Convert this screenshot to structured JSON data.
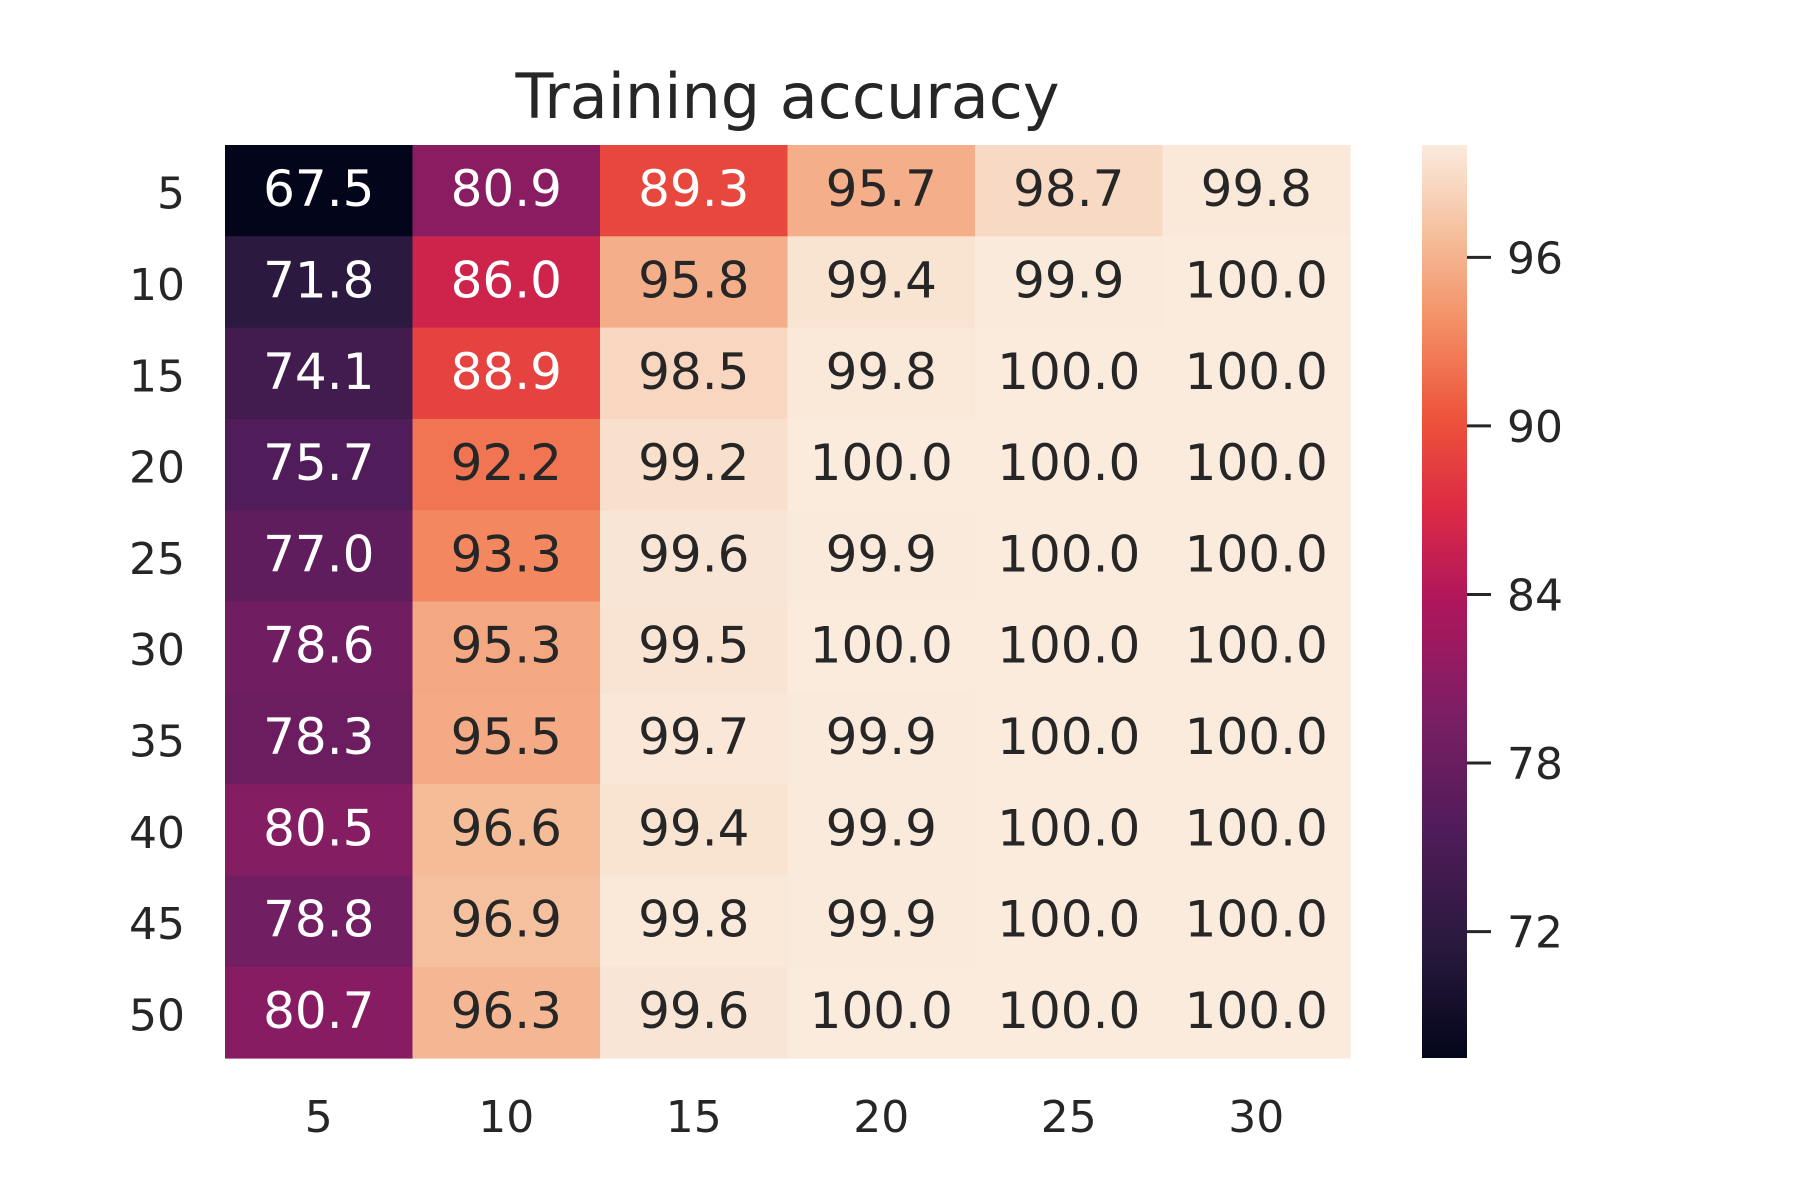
{
  "chart_data": {
    "type": "heatmap",
    "title": "Training accuracy",
    "xlabel": "",
    "ylabel": "",
    "x_categories": [
      "5",
      "10",
      "15",
      "20",
      "25",
      "30"
    ],
    "y_categories": [
      "5",
      "10",
      "15",
      "20",
      "25",
      "30",
      "35",
      "40",
      "45",
      "50"
    ],
    "values": [
      [
        67.5,
        80.9,
        89.3,
        95.7,
        98.7,
        99.8
      ],
      [
        71.8,
        86.0,
        95.8,
        99.4,
        99.9,
        100.0
      ],
      [
        74.1,
        88.9,
        98.5,
        99.8,
        100.0,
        100.0
      ],
      [
        75.7,
        92.2,
        99.2,
        100.0,
        100.0,
        100.0
      ],
      [
        77.0,
        93.3,
        99.6,
        99.9,
        100.0,
        100.0
      ],
      [
        78.6,
        95.3,
        99.5,
        100.0,
        100.0,
        100.0
      ],
      [
        78.3,
        95.5,
        99.7,
        99.9,
        100.0,
        100.0
      ],
      [
        80.5,
        96.6,
        99.4,
        99.9,
        100.0,
        100.0
      ],
      [
        78.8,
        96.9,
        99.8,
        99.9,
        100.0,
        100.0
      ],
      [
        80.7,
        96.3,
        99.6,
        100.0,
        100.0,
        100.0
      ]
    ],
    "value_format": "0.1f",
    "colormap": "rocket",
    "colorbar": {
      "range": [
        67.5,
        100.0
      ],
      "ticks": [
        72,
        78,
        84,
        90,
        96
      ],
      "tick_labels": [
        "72",
        "78",
        "84",
        "90",
        "96"
      ]
    },
    "grid": false,
    "legend": "none"
  }
}
